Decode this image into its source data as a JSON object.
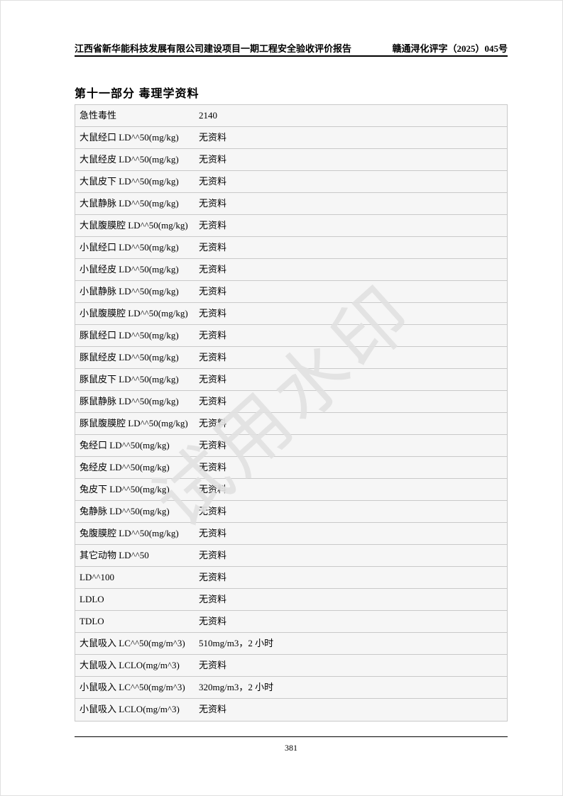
{
  "header": {
    "left": "江西省新华能科技发展有限公司建设项目一期工程安全验收评价报告",
    "right": "赣通浔化评字（2025）045号"
  },
  "section_title": "第十一部分 毒理学资料",
  "table": {
    "rows": [
      {
        "label": "急性毒性",
        "value": "2140"
      },
      {
        "label": "大鼠经口 LD^^50(mg/kg)",
        "value": "无资料"
      },
      {
        "label": "大鼠经皮 LD^^50(mg/kg)",
        "value": "无资料"
      },
      {
        "label": "大鼠皮下 LD^^50(mg/kg)",
        "value": "无资料"
      },
      {
        "label": "大鼠静脉 LD^^50(mg/kg)",
        "value": "无资料"
      },
      {
        "label": "大鼠腹膜腔 LD^^50(mg/kg)",
        "value": "无资料"
      },
      {
        "label": "小鼠经口 LD^^50(mg/kg)",
        "value": "无资料"
      },
      {
        "label": "小鼠经皮 LD^^50(mg/kg)",
        "value": "无资料"
      },
      {
        "label": "小鼠静脉 LD^^50(mg/kg)",
        "value": "无资料"
      },
      {
        "label": "小鼠腹膜腔 LD^^50(mg/kg)",
        "value": "无资料"
      },
      {
        "label": "豚鼠经口 LD^^50(mg/kg)",
        "value": "无资料"
      },
      {
        "label": "豚鼠经皮 LD^^50(mg/kg)",
        "value": "无资料"
      },
      {
        "label": "豚鼠皮下 LD^^50(mg/kg)",
        "value": "无资料"
      },
      {
        "label": "豚鼠静脉 LD^^50(mg/kg)",
        "value": "无资料"
      },
      {
        "label": "豚鼠腹膜腔 LD^^50(mg/kg)",
        "value": "无资料"
      },
      {
        "label": "兔经口 LD^^50(mg/kg)",
        "value": "无资料"
      },
      {
        "label": "兔经皮 LD^^50(mg/kg)",
        "value": "无资料"
      },
      {
        "label": "兔皮下 LD^^50(mg/kg)",
        "value": "无资料"
      },
      {
        "label": "兔静脉 LD^^50(mg/kg)",
        "value": "无资料"
      },
      {
        "label": "兔腹膜腔 LD^^50(mg/kg)",
        "value": "无资料"
      },
      {
        "label": "其它动物 LD^^50",
        "value": "无资料"
      },
      {
        "label": "LD^^100",
        "value": "无资料"
      },
      {
        "label": "LDLO",
        "value": "无资料"
      },
      {
        "label": "TDLO",
        "value": "无资料"
      },
      {
        "label": "大鼠吸入 LC^^50(mg/m^3)",
        "value": "510mg/m3，2 小时"
      },
      {
        "label": "大鼠吸入 LCLO(mg/m^3)",
        "value": "无资料"
      },
      {
        "label": "小鼠吸入 LC^^50(mg/m^3)",
        "value": "320mg/m3，2 小时"
      },
      {
        "label": "小鼠吸入 LCLO(mg/m^3)",
        "value": "无资料"
      }
    ]
  },
  "watermark": {
    "text": "试用水印",
    "color": "#e1e1e1"
  },
  "footer": {
    "page_number": "381"
  },
  "colors": {
    "table_background": "#f6f6f6",
    "table_border": "#c9c9c9",
    "rule": "#000000"
  }
}
